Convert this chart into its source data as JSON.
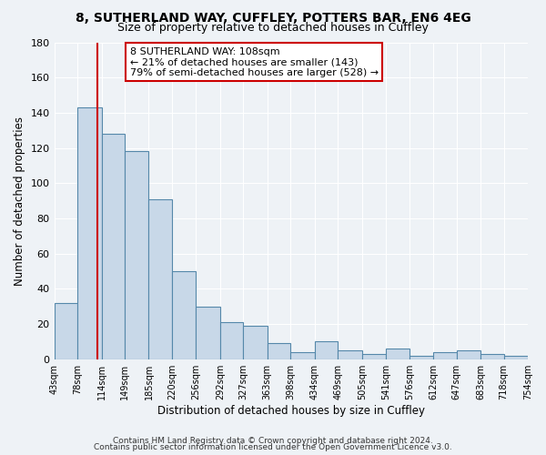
{
  "title_line1": "8, SUTHERLAND WAY, CUFFLEY, POTTERS BAR, EN6 4EG",
  "title_line2": "Size of property relative to detached houses in Cuffley",
  "xlabel": "Distribution of detached houses by size in Cuffley",
  "ylabel": "Number of detached properties",
  "bin_edges": [
    43,
    78,
    114,
    149,
    185,
    220,
    256,
    292,
    327,
    363,
    398,
    434,
    469,
    505,
    541,
    576,
    612,
    647,
    683,
    718,
    754
  ],
  "bar_heights": [
    32,
    143,
    128,
    118,
    91,
    50,
    30,
    21,
    19,
    9,
    4,
    10,
    5,
    3,
    6,
    2,
    4,
    5,
    3,
    2
  ],
  "bar_color": "#c8d8e8",
  "bar_edge_color": "#5588aa",
  "bar_edge_width": 0.8,
  "red_line_x": 108,
  "annotation_line1": "8 SUTHERLAND WAY: 108sqm",
  "annotation_line2": "← 21% of detached houses are smaller (143)",
  "annotation_line3": "79% of semi-detached houses are larger (528) →",
  "annotation_box_color": "#ffffff",
  "annotation_box_edge_color": "#cc0000",
  "red_line_color": "#cc0000",
  "ylim": [
    0,
    180
  ],
  "yticks": [
    0,
    20,
    40,
    60,
    80,
    100,
    120,
    140,
    160,
    180
  ],
  "footer_line1": "Contains HM Land Registry data © Crown copyright and database right 2024.",
  "footer_line2": "Contains public sector information licensed under the Open Government Licence v3.0.",
  "background_color": "#eef2f6",
  "grid_color": "#ffffff",
  "title_fontsize": 10,
  "subtitle_fontsize": 9,
  "tick_label_fontsize": 7,
  "axis_label_fontsize": 8.5,
  "footer_fontsize": 6.5,
  "annotation_fontsize": 8
}
